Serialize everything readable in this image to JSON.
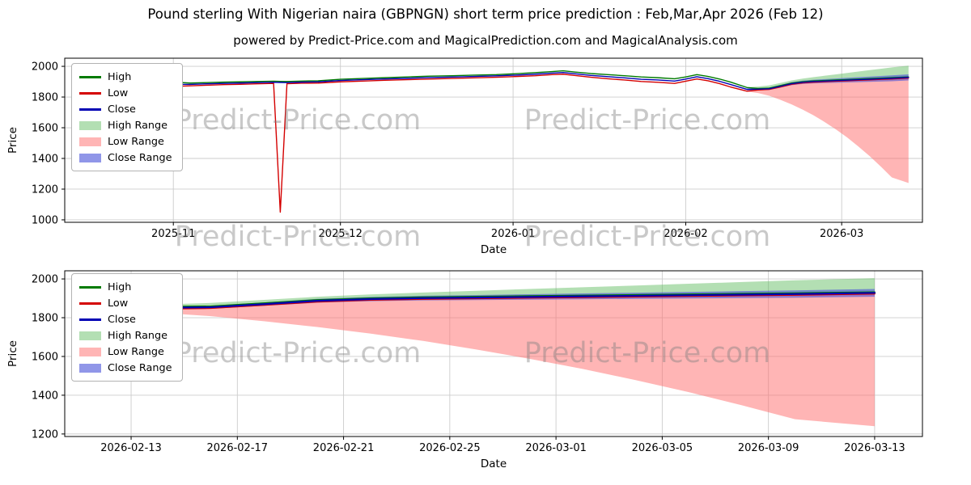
{
  "page": {
    "title": "Pound sterling With Nigerian naira (GBPNGN) short term price prediction : Feb,Mar,Apr 2026 (Feb 12)",
    "subtitle": "powered by Predict-Price.com and MagicalPrediction.com and MagicalAnalysis.com",
    "watermark": "Predict-Price.com",
    "background": "#ffffff"
  },
  "colors": {
    "high": "#007a00",
    "low": "#d40000",
    "close": "#0000b4",
    "high_range": "#57b957",
    "low_range": "#ff6b6b",
    "close_range": "#4650d8",
    "grid": "#cccccc",
    "frame": "#000000",
    "watermark": "#808080"
  },
  "opacity": {
    "high_range": 0.45,
    "low_range": 0.5,
    "close_range": 0.6
  },
  "legend": [
    "High",
    "Low",
    "Close",
    "High Range",
    "Low Range",
    "Close Range"
  ],
  "chart_data": [
    {
      "type": "line",
      "title": "",
      "xlabel": "Date",
      "ylabel": "Price",
      "x_unit": "days since 2025-10-14",
      "xlim": [
        -1.5,
        152.5
      ],
      "ylim": [
        984,
        2053
      ],
      "yticks": [
        1000,
        1200,
        1400,
        1600,
        1800,
        2000
      ],
      "xticks": [
        {
          "pos": 18,
          "label": "2025-11"
        },
        {
          "pos": 48,
          "label": "2025-12"
        },
        {
          "pos": 79,
          "label": "2026-01"
        },
        {
          "pos": 110,
          "label": "2026-02"
        },
        {
          "pos": 138,
          "label": "2026-03"
        }
      ],
      "historical": {
        "x": [
          0,
          4,
          8,
          12,
          15,
          18,
          21,
          24,
          27,
          30,
          33,
          36,
          37.2,
          38.4,
          41,
          44,
          48,
          52,
          56,
          60,
          64,
          68,
          72,
          76,
          79,
          83,
          86,
          88,
          90,
          93,
          96,
          99,
          102,
          105,
          108,
          110,
          112,
          114,
          116,
          118,
          121
        ],
        "High": [
          1952,
          1949,
          1946,
          1941,
          1925,
          1897,
          1891,
          1894,
          1897,
          1899,
          1901,
          1903,
          1902,
          1901,
          1904,
          1906,
          1916,
          1921,
          1926,
          1931,
          1936,
          1939,
          1943,
          1946,
          1951,
          1959,
          1966,
          1971,
          1963,
          1953,
          1946,
          1939,
          1931,
          1926,
          1919,
          1931,
          1946,
          1934,
          1918,
          1898,
          1862
        ],
        "Low": [
          1946,
          1941,
          1938,
          1931,
          1902,
          1869,
          1873,
          1877,
          1881,
          1883,
          1886,
          1889,
          1050,
          1887,
          1890,
          1891,
          1899,
          1904,
          1909,
          1913,
          1917,
          1921,
          1925,
          1929,
          1933,
          1939,
          1946,
          1949,
          1941,
          1929,
          1919,
          1911,
          1901,
          1896,
          1889,
          1903,
          1918,
          1906,
          1888,
          1866,
          1838
        ],
        "Close": [
          1949,
          1945,
          1942,
          1936,
          1914,
          1883,
          1882,
          1886,
          1889,
          1891,
          1894,
          1896,
          1895,
          1894,
          1897,
          1899,
          1908,
          1913,
          1918,
          1922,
          1927,
          1930,
          1934,
          1938,
          1942,
          1949,
          1956,
          1960,
          1952,
          1941,
          1933,
          1925,
          1916,
          1911,
          1904,
          1917,
          1932,
          1920,
          1903,
          1882,
          1850
        ]
      },
      "prediction": {
        "x": [
          121,
          123,
          125,
          127,
          129,
          131,
          133,
          135,
          137,
          139,
          141,
          143,
          145,
          147,
          150
        ],
        "High": [
          1862,
          1856,
          1858,
          1874,
          1891,
          1900,
          1905,
          1908,
          1911,
          1914,
          1917,
          1920,
          1923,
          1926,
          1931
        ],
        "Low": [
          1838,
          1846,
          1850,
          1866,
          1883,
          1892,
          1897,
          1900,
          1903,
          1906,
          1909,
          1912,
          1915,
          1918,
          1924
        ],
        "Close": [
          1850,
          1851,
          1854,
          1870,
          1887,
          1896,
          1901,
          1904,
          1907,
          1910,
          1913,
          1916,
          1919,
          1922,
          1928
        ],
        "high_range_top": [
          1864,
          1868,
          1876,
          1892,
          1908,
          1920,
          1930,
          1939,
          1948,
          1957,
          1966,
          1975,
          1984,
          1993,
          2004
        ],
        "low_range_bottom": [
          1836,
          1826,
          1808,
          1782,
          1752,
          1718,
          1680,
          1636,
          1588,
          1536,
          1478,
          1416,
          1348,
          1276,
          1240
        ],
        "close_range_top": [
          1856,
          1858,
          1862,
          1879,
          1897,
          1907,
          1913,
          1917,
          1921,
          1925,
          1929,
          1933,
          1937,
          1941,
          1948
        ],
        "close_range_bottom": [
          1844,
          1844,
          1846,
          1861,
          1877,
          1885,
          1889,
          1891,
          1893,
          1895,
          1897,
          1899,
          1901,
          1903,
          1908
        ]
      }
    },
    {
      "type": "line",
      "title": "",
      "xlabel": "Date",
      "ylabel": "Price",
      "x_unit": "days since 2025-10-14",
      "xlim": [
        119.5,
        151.8
      ],
      "ylim": [
        1187,
        2042
      ],
      "yticks": [
        1200,
        1400,
        1600,
        1800,
        2000
      ],
      "xticks": [
        {
          "pos": 122,
          "label": "2026-02-13"
        },
        {
          "pos": 126,
          "label": "2026-02-17"
        },
        {
          "pos": 130,
          "label": "2026-02-21"
        },
        {
          "pos": 134,
          "label": "2026-02-25"
        },
        {
          "pos": 138,
          "label": "2026-03-01"
        },
        {
          "pos": 142,
          "label": "2026-03-05"
        },
        {
          "pos": 146,
          "label": "2026-03-09"
        },
        {
          "pos": 150,
          "label": "2026-03-13"
        }
      ],
      "prediction": {
        "x": [
          121,
          123,
          125,
          127,
          129,
          131,
          133,
          135,
          137,
          139,
          141,
          143,
          145,
          147,
          150
        ],
        "High": [
          1862,
          1856,
          1858,
          1874,
          1891,
          1900,
          1905,
          1908,
          1911,
          1914,
          1917,
          1920,
          1923,
          1926,
          1931
        ],
        "Low": [
          1838,
          1846,
          1850,
          1866,
          1883,
          1892,
          1897,
          1900,
          1903,
          1906,
          1909,
          1912,
          1915,
          1918,
          1924
        ],
        "Close": [
          1850,
          1851,
          1854,
          1870,
          1887,
          1896,
          1901,
          1904,
          1907,
          1910,
          1913,
          1916,
          1919,
          1922,
          1928
        ],
        "high_range_top": [
          1864,
          1868,
          1876,
          1892,
          1908,
          1920,
          1930,
          1939,
          1948,
          1957,
          1966,
          1975,
          1984,
          1993,
          2004
        ],
        "low_range_bottom": [
          1836,
          1826,
          1808,
          1782,
          1752,
          1718,
          1680,
          1636,
          1588,
          1536,
          1478,
          1416,
          1348,
          1276,
          1240
        ],
        "close_range_top": [
          1856,
          1858,
          1862,
          1879,
          1897,
          1907,
          1913,
          1917,
          1921,
          1925,
          1929,
          1933,
          1937,
          1941,
          1948
        ],
        "close_range_bottom": [
          1844,
          1844,
          1846,
          1861,
          1877,
          1885,
          1889,
          1891,
          1893,
          1895,
          1897,
          1899,
          1901,
          1903,
          1908
        ]
      }
    }
  ]
}
